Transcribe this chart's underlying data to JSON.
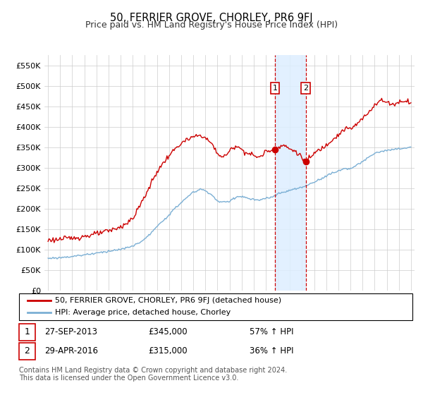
{
  "title": "50, FERRIER GROVE, CHORLEY, PR6 9FJ",
  "subtitle": "Price paid vs. HM Land Registry's House Price Index (HPI)",
  "legend_line1": "50, FERRIER GROVE, CHORLEY, PR6 9FJ (detached house)",
  "legend_line2": "HPI: Average price, detached house, Chorley",
  "transaction1_label": "1",
  "transaction1_date": "27-SEP-2013",
  "transaction1_price": 345000,
  "transaction1_price_str": "£345,000",
  "transaction1_pct": "57% ↑ HPI",
  "transaction1_year": 2013.75,
  "transaction2_label": "2",
  "transaction2_date": "29-APR-2016",
  "transaction2_price": 315000,
  "transaction2_price_str": "£315,000",
  "transaction2_pct": "36% ↑ HPI",
  "transaction2_year": 2016.3,
  "footer": "Contains HM Land Registry data © Crown copyright and database right 2024.\nThis data is licensed under the Open Government Licence v3.0.",
  "property_color": "#cc0000",
  "hpi_color": "#7bafd4",
  "marker_box_color": "#cc0000",
  "shade_color": "#ddeeff",
  "background_color": "#ffffff",
  "grid_color": "#cccccc",
  "ylim": [
    0,
    575000
  ],
  "yticks": [
    0,
    50000,
    100000,
    150000,
    200000,
    250000,
    300000,
    350000,
    400000,
    450000,
    500000,
    550000
  ],
  "ytick_labels": [
    "£0",
    "£50K",
    "£100K",
    "£150K",
    "£200K",
    "£250K",
    "£300K",
    "£350K",
    "£400K",
    "£450K",
    "£500K",
    "£550K"
  ],
  "xmin": 1994.7,
  "xmax": 2025.3,
  "prop_anchors_t": [
    1995.0,
    1996.0,
    1997.0,
    1998.0,
    1999.0,
    2000.0,
    2001.0,
    2002.0,
    2003.0,
    2004.0,
    2005.0,
    2006.0,
    2007.0,
    2007.7,
    2008.5,
    2009.0,
    2009.5,
    2010.0,
    2010.5,
    2011.0,
    2011.5,
    2012.0,
    2012.5,
    2013.0,
    2013.75,
    2014.0,
    2014.5,
    2015.0,
    2015.5,
    2016.3,
    2016.7,
    2017.0,
    2017.5,
    2018.0,
    2018.5,
    2019.0,
    2019.5,
    2020.0,
    2020.5,
    2021.0,
    2021.5,
    2022.0,
    2022.5,
    2023.0,
    2023.5,
    2024.0,
    2024.5,
    2025.0
  ],
  "prop_anchors_p": [
    123000,
    125000,
    128000,
    132000,
    138000,
    145000,
    155000,
    175000,
    230000,
    290000,
    330000,
    360000,
    375000,
    380000,
    360000,
    335000,
    325000,
    340000,
    355000,
    345000,
    335000,
    330000,
    325000,
    340000,
    345000,
    350000,
    355000,
    345000,
    340000,
    315000,
    325000,
    335000,
    345000,
    355000,
    370000,
    380000,
    395000,
    395000,
    405000,
    420000,
    435000,
    455000,
    465000,
    460000,
    455000,
    460000,
    465000,
    460000
  ],
  "hpi_anchors_t": [
    1995.0,
    1996.0,
    1997.0,
    1998.0,
    1999.0,
    2000.0,
    2001.0,
    2002.0,
    2003.0,
    2004.0,
    2005.0,
    2006.0,
    2007.0,
    2007.7,
    2008.5,
    2009.0,
    2009.5,
    2010.0,
    2010.5,
    2011.0,
    2011.5,
    2012.0,
    2012.5,
    2013.0,
    2013.5,
    2014.0,
    2014.5,
    2015.0,
    2015.5,
    2016.0,
    2016.5,
    2017.0,
    2017.5,
    2018.0,
    2018.5,
    2019.0,
    2019.5,
    2020.0,
    2020.5,
    2021.0,
    2021.5,
    2022.0,
    2022.5,
    2023.0,
    2023.5,
    2024.0,
    2024.5,
    2025.0
  ],
  "hpi_anchors_p": [
    78000,
    80000,
    83000,
    87000,
    91000,
    96000,
    100000,
    108000,
    125000,
    155000,
    185000,
    215000,
    240000,
    248000,
    235000,
    218000,
    215000,
    218000,
    228000,
    230000,
    225000,
    222000,
    220000,
    225000,
    228000,
    235000,
    240000,
    245000,
    248000,
    252000,
    258000,
    265000,
    272000,
    280000,
    287000,
    292000,
    298000,
    298000,
    305000,
    315000,
    325000,
    335000,
    340000,
    342000,
    344000,
    346000,
    348000,
    350000
  ]
}
